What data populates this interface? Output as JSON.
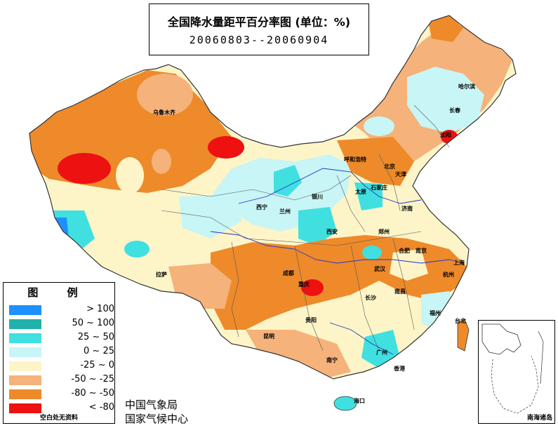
{
  "title": "全国降水量距平百分率图 (单位：%)",
  "date_range": "20060803--20060904",
  "legend": {
    "title": "图 例",
    "items": [
      {
        "label": "> 100",
        "color": "#1e90ff"
      },
      {
        "label": "50 ~ 100",
        "color": "#20b2aa"
      },
      {
        "label": "25 ~ 50",
        "color": "#40e0e0"
      },
      {
        "label": "0 ~ 25",
        "color": "#c8f5f5"
      },
      {
        "label": "-25 ~ 0",
        "color": "#fdf5c8"
      },
      {
        "label": "-50 ~ -25",
        "color": "#f5b27a"
      },
      {
        "label": "-80 ~ -50",
        "color": "#ee8a2a"
      },
      {
        "label": "< -80",
        "color": "#ee1111"
      }
    ],
    "note": "空白处无资料"
  },
  "agency": {
    "line1": "中国气象局",
    "line2": "国家气候中心"
  },
  "inset_label": "南海诸岛",
  "cities": [
    {
      "name": "乌鲁木齐"
    },
    {
      "name": "哈尔滨"
    },
    {
      "name": "长春"
    },
    {
      "name": "沈阳"
    },
    {
      "name": "呼和浩特"
    },
    {
      "name": "北京"
    },
    {
      "name": "天津"
    },
    {
      "name": "石家庄"
    },
    {
      "name": "太原"
    },
    {
      "name": "银川"
    },
    {
      "name": "西宁"
    },
    {
      "name": "兰州"
    },
    {
      "name": "济南"
    },
    {
      "name": "郑州"
    },
    {
      "name": "西安"
    },
    {
      "name": "拉萨"
    },
    {
      "name": "成都"
    },
    {
      "name": "重庆"
    },
    {
      "name": "武汉"
    },
    {
      "name": "合肥"
    },
    {
      "name": "南京"
    },
    {
      "name": "上海"
    },
    {
      "name": "杭州"
    },
    {
      "name": "南昌"
    },
    {
      "name": "长沙"
    },
    {
      "name": "福州"
    },
    {
      "name": "贵阳"
    },
    {
      "name": "昆明"
    },
    {
      "name": "南宁"
    },
    {
      "name": "广州"
    },
    {
      "name": "香港"
    },
    {
      "name": "海口"
    },
    {
      "name": "台北"
    }
  ]
}
